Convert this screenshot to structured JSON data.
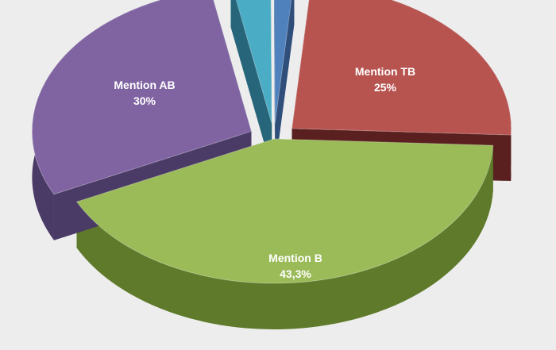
{
  "chart_data": {
    "type": "pie",
    "title": "",
    "categories": [
      "Mention TB",
      "Mention B",
      "Mention AB",
      "",
      ""
    ],
    "values": [
      25,
      43.3,
      30,
      3,
      1.5
    ],
    "labels": [
      {
        "name": "Mention TB",
        "value": "25%"
      },
      {
        "name": "Mention B",
        "value": "43,3%"
      },
      {
        "name": "Mention AB",
        "value": "30%"
      },
      {
        "name": "",
        "value": ""
      },
      {
        "name": "",
        "value": ""
      }
    ],
    "colors": [
      "#b85450",
      "#9bbb59",
      "#8064a2",
      "#4bacc6",
      "#4f81bd"
    ],
    "side_colors": [
      "#5a2020",
      "#5e7a2a",
      "#4a3a66",
      "#27667a",
      "#2f4f7a"
    ],
    "style": "3d-exploded",
    "legend": "none"
  }
}
